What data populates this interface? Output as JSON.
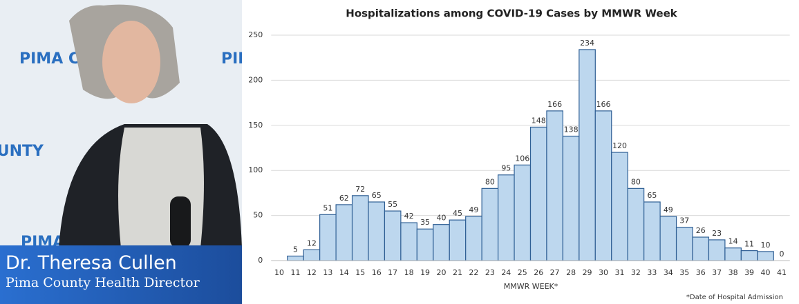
{
  "backdrop_text": "PIMA COUNTY",
  "lower_third": {
    "name": "Dr. Theresa Cullen",
    "title": "Pima County Health Director"
  },
  "chart_data": {
    "type": "bar",
    "title": "Hospitalizations among COVID-19 Cases by MMWR Week",
    "x_label": "MMWR WEEK*",
    "footnote": "*Date of Hospital Admission",
    "categories": [
      "10",
      "11",
      "12",
      "13",
      "14",
      "15",
      "16",
      "17",
      "18",
      "19",
      "20",
      "21",
      "22",
      "23",
      "24",
      "25",
      "26",
      "27",
      "28",
      "29",
      "30",
      "31",
      "32",
      "33",
      "34",
      "35",
      "36",
      "37",
      "38",
      "39",
      "40",
      "41"
    ],
    "values": [
      null,
      5,
      12,
      51,
      62,
      72,
      65,
      55,
      42,
      35,
      40,
      45,
      49,
      80,
      95,
      106,
      148,
      166,
      138,
      234,
      166,
      120,
      80,
      65,
      49,
      37,
      26,
      23,
      14,
      11,
      10,
      0
    ],
    "color": "#bdd7ee",
    "edge_color": "#2f5f94",
    "ylim": [
      0,
      250
    ],
    "yticks": [
      0,
      50,
      100,
      150,
      200,
      250
    ],
    "grid": true
  }
}
